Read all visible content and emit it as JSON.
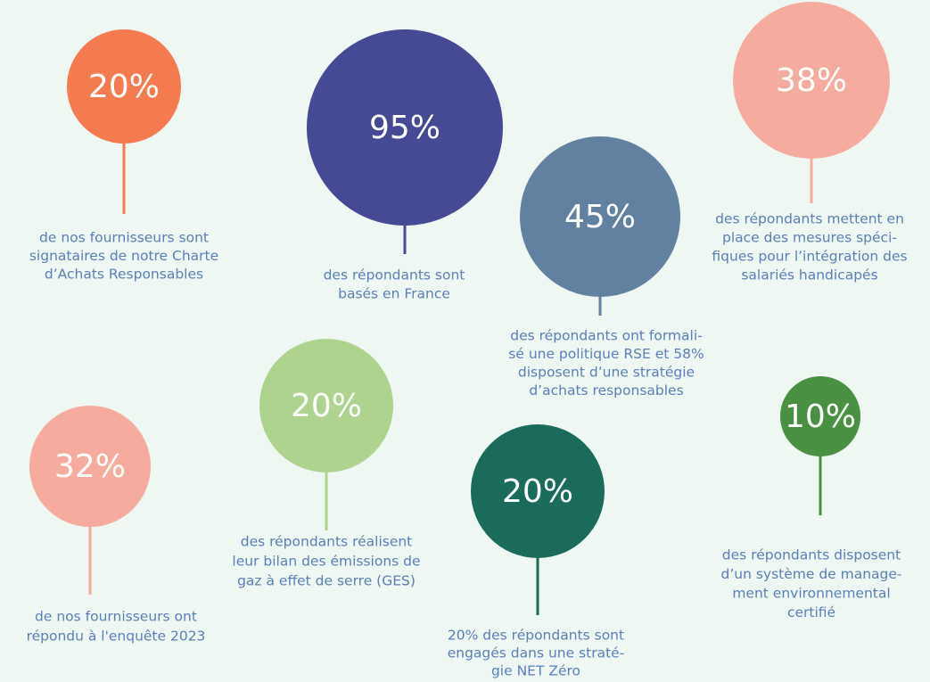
{
  "items": [
    {
      "value": "20%",
      "color": "#f47b4f",
      "lines": [
        "de nos fournisseurs sont",
        "signataires de notre Charte",
        "d’Achats Responsables"
      ]
    },
    {
      "value": "95%",
      "color": "#464a94",
      "lines": [
        "des répondants sont",
        "basés en France"
      ]
    },
    {
      "value": "45%",
      "color": "#62809f",
      "lines": [
        "des répondants ont formali-",
        "sé une politique RSE et 58%",
        "disposent d’une stratégie",
        "d’achats responsables"
      ]
    },
    {
      "value": "38%",
      "color": "#f6ab9f",
      "lines": [
        "des répondants mettent en",
        "place des mesures spéci-",
        "fiques pour l’intégration des",
        "salariés handicapés"
      ]
    },
    {
      "value": "20%",
      "color": "#aed38e",
      "lines": [
        "des répondants réalisent",
        "leur bilan des émissions de",
        "gaz à effet de serre (GES)"
      ]
    },
    {
      "value": "32%",
      "color": "#f6ab9f",
      "lines": [
        "de nos fournisseurs ont",
        "répondu à l'enquête 2023"
      ]
    },
    {
      "value": "20%",
      "color": "#1b6b5b",
      "lines": [
        "20% des répondants sont",
        "engagés dans une straté-",
        "gie NET Zéro"
      ]
    },
    {
      "value": "10%",
      "color": "#4a9042",
      "lines": [
        "des répondants disposent",
        "d’un système de manage-",
        "ment environnemental",
        "certifié"
      ]
    }
  ]
}
